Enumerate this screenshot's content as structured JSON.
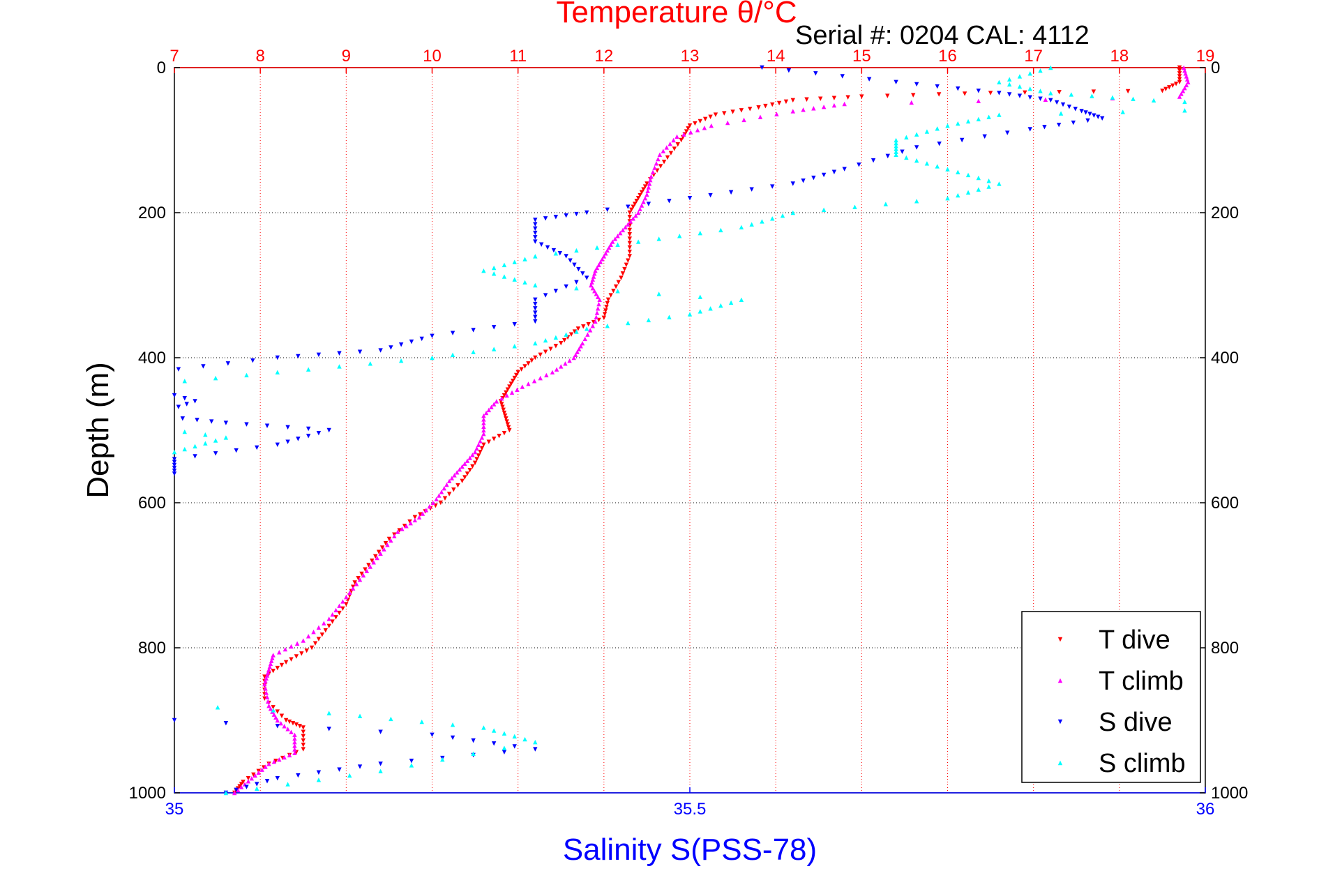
{
  "chart_data": {
    "type": "scatter",
    "title": "Temperature θ/°C",
    "annotation": "Serial #: 0204  CAL: 4112",
    "ylabel": "Depth (m)",
    "xlabel": "Salinity S(PSS-78)",
    "ylim": [
      0,
      1000
    ],
    "y_reversed": true,
    "y_ticks": [
      "0",
      "200",
      "400",
      "600",
      "800",
      "1000"
    ],
    "temperature_axis": {
      "position": "top",
      "range": [
        7,
        19
      ],
      "ticks": [
        "7",
        "8",
        "9",
        "10",
        "11",
        "12",
        "13",
        "14",
        "15",
        "16",
        "17",
        "18",
        "19"
      ],
      "color": "#ff0000"
    },
    "salinity_axis": {
      "position": "bottom",
      "range": [
        35,
        36
      ],
      "ticks": [
        "35",
        "35.5",
        "36"
      ],
      "color": "#0000ff"
    },
    "grid": true,
    "legend_placement": "bottom-right",
    "series": [
      {
        "name": "T dive",
        "axis": "temperature",
        "color": "#ff0000",
        "marker": "triangle-down",
        "points": [
          [
            18.7,
            0
          ],
          [
            18.7,
            20
          ],
          [
            18.5,
            32
          ],
          [
            16.5,
            35
          ],
          [
            15,
            40
          ],
          [
            14.2,
            45
          ],
          [
            13.8,
            55
          ],
          [
            13.3,
            65
          ],
          [
            13,
            80
          ],
          [
            12.9,
            100
          ],
          [
            12.7,
            130
          ],
          [
            12.5,
            160
          ],
          [
            12.4,
            180
          ],
          [
            12.3,
            200
          ],
          [
            12.3,
            230
          ],
          [
            12.3,
            260
          ],
          [
            12.2,
            290
          ],
          [
            12.05,
            320
          ],
          [
            12,
            345
          ],
          [
            11.7,
            360
          ],
          [
            11.5,
            380
          ],
          [
            11.2,
            400
          ],
          [
            11,
            420
          ],
          [
            10.9,
            440
          ],
          [
            10.8,
            460
          ],
          [
            10.85,
            480
          ],
          [
            10.9,
            500
          ],
          [
            10.6,
            520
          ],
          [
            10.5,
            545
          ],
          [
            10.35,
            570
          ],
          [
            10.1,
            600
          ],
          [
            9.8,
            620
          ],
          [
            9.5,
            650
          ],
          [
            9.3,
            680
          ],
          [
            9.1,
            710
          ],
          [
            9,
            740
          ],
          [
            8.8,
            770
          ],
          [
            8.6,
            800
          ],
          [
            8.3,
            820
          ],
          [
            8.05,
            840
          ],
          [
            8.05,
            870
          ],
          [
            8.3,
            900
          ],
          [
            8.5,
            910
          ],
          [
            8.5,
            940
          ],
          [
            8.1,
            960
          ],
          [
            7.8,
            985
          ],
          [
            7.7,
            1000
          ]
        ]
      },
      {
        "name": "T climb",
        "axis": "temperature",
        "color": "#ff00ff",
        "marker": "triangle-up",
        "points": [
          [
            7.7,
            1000
          ],
          [
            7.9,
            980
          ],
          [
            8.1,
            960
          ],
          [
            8.4,
            945
          ],
          [
            8.4,
            920
          ],
          [
            8.2,
            900
          ],
          [
            8.1,
            880
          ],
          [
            8.05,
            850
          ],
          [
            8.1,
            830
          ],
          [
            8.15,
            810
          ],
          [
            8.5,
            790
          ],
          [
            8.8,
            760
          ],
          [
            9,
            730
          ],
          [
            9.2,
            700
          ],
          [
            9.4,
            670
          ],
          [
            9.6,
            640
          ],
          [
            9.85,
            620
          ],
          [
            10.05,
            595
          ],
          [
            10.2,
            570
          ],
          [
            10.35,
            550
          ],
          [
            10.5,
            530
          ],
          [
            10.6,
            505
          ],
          [
            10.6,
            480
          ],
          [
            10.75,
            460
          ],
          [
            11.05,
            440
          ],
          [
            11.4,
            420
          ],
          [
            11.65,
            400
          ],
          [
            11.75,
            380
          ],
          [
            11.9,
            350
          ],
          [
            11.95,
            320
          ],
          [
            11.85,
            300
          ],
          [
            11.9,
            280
          ],
          [
            12,
            260
          ],
          [
            12.1,
            240
          ],
          [
            12.25,
            220
          ],
          [
            12.4,
            200
          ],
          [
            12.5,
            175
          ],
          [
            12.55,
            150
          ],
          [
            12.65,
            120
          ],
          [
            12.85,
            95
          ],
          [
            13.25,
            80
          ],
          [
            14.2,
            60
          ],
          [
            14.8,
            50
          ],
          [
            18.7,
            40
          ],
          [
            18.8,
            20
          ],
          [
            18.75,
            0
          ]
        ]
      },
      {
        "name": "S dive",
        "axis": "salinity",
        "color": "#0000ff",
        "marker": "triangle-down",
        "points": [
          [
            35.57,
            0
          ],
          [
            35.7,
            20
          ],
          [
            35.8,
            35
          ],
          [
            35.85,
            45
          ],
          [
            35.88,
            60
          ],
          [
            35.9,
            70
          ],
          [
            35.83,
            85
          ],
          [
            35.72,
            110
          ],
          [
            35.65,
            140
          ],
          [
            35.6,
            160
          ],
          [
            35.5,
            180
          ],
          [
            35.4,
            200
          ],
          [
            35.35,
            210
          ],
          [
            35.35,
            240
          ],
          [
            35.38,
            260
          ],
          [
            35.4,
            290
          ],
          [
            35.35,
            320
          ],
          [
            35.35,
            350
          ],
          [
            35.25,
            370
          ],
          [
            35.2,
            390
          ],
          [
            35.1,
            400
          ],
          [
            34.98,
            420
          ],
          [
            34.97,
            440
          ],
          [
            35.02,
            460
          ],
          [
            34.98,
            480
          ],
          [
            35.05,
            490
          ],
          [
            35.15,
            500
          ],
          [
            35.1,
            520
          ],
          [
            35.0,
            540
          ],
          [
            35.0,
            560
          ],
          [
            34.97,
            590
          ],
          [
            34.88,
            620
          ],
          [
            34.82,
            640
          ],
          [
            34.85,
            660
          ],
          [
            34.9,
            690
          ],
          [
            34.93,
            720
          ],
          [
            34.95,
            760
          ],
          [
            34.92,
            800
          ],
          [
            34.8,
            840
          ],
          [
            34.85,
            870
          ],
          [
            34.9,
            890
          ],
          [
            35.0,
            900
          ],
          [
            35.25,
            920
          ],
          [
            35.35,
            940
          ],
          [
            35.2,
            960
          ],
          [
            35.1,
            980
          ],
          [
            35.05,
            1000
          ]
        ]
      },
      {
        "name": "S climb",
        "axis": "salinity",
        "color": "#00ffff",
        "marker": "triangle-up",
        "points": [
          [
            35.05,
            1000
          ],
          [
            35.2,
            970
          ],
          [
            35.35,
            930
          ],
          [
            35.3,
            910
          ],
          [
            35.15,
            890
          ],
          [
            34.88,
            870
          ],
          [
            34.78,
            840
          ],
          [
            34.7,
            810
          ],
          [
            34.9,
            780
          ],
          [
            34.95,
            750
          ],
          [
            34.92,
            720
          ],
          [
            34.88,
            690
          ],
          [
            34.8,
            660
          ],
          [
            34.85,
            630
          ],
          [
            34.9,
            610
          ],
          [
            34.9,
            580
          ],
          [
            34.95,
            550
          ],
          [
            35.0,
            530
          ],
          [
            35.05,
            510
          ],
          [
            34.95,
            490
          ],
          [
            34.92,
            460
          ],
          [
            34.95,
            440
          ],
          [
            35.1,
            420
          ],
          [
            35.25,
            400
          ],
          [
            35.35,
            380
          ],
          [
            35.4,
            360
          ],
          [
            35.5,
            340
          ],
          [
            35.55,
            320
          ],
          [
            35.35,
            300
          ],
          [
            35.3,
            280
          ],
          [
            35.35,
            260
          ],
          [
            35.45,
            240
          ],
          [
            35.55,
            220
          ],
          [
            35.6,
            200
          ],
          [
            35.75,
            180
          ],
          [
            35.8,
            160
          ],
          [
            35.75,
            140
          ],
          [
            35.7,
            120
          ],
          [
            35.7,
            100
          ],
          [
            35.75,
            80
          ],
          [
            35.8,
            65
          ],
          [
            36.1,
            55
          ],
          [
            35.95,
            45
          ],
          [
            35.85,
            35
          ],
          [
            35.8,
            20
          ],
          [
            35.85,
            0
          ]
        ]
      }
    ]
  }
}
